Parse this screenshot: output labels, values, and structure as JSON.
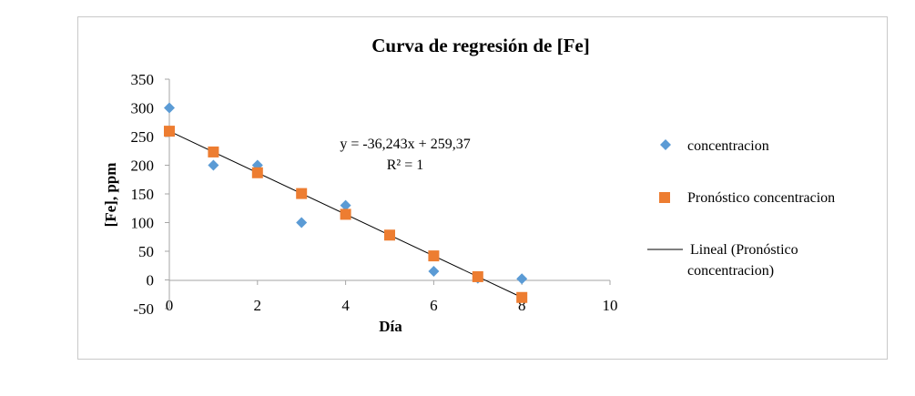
{
  "chart_data": {
    "type": "scatter",
    "title": "Curva de regresión de [Fe]",
    "xlabel": "Día",
    "ylabel": "[Fe], ppm",
    "xlim": [
      0,
      10
    ],
    "ylim": [
      -50,
      350
    ],
    "x_ticks": [
      "0",
      "2",
      "4",
      "6",
      "8",
      "10"
    ],
    "y_ticks": [
      "-50",
      "0",
      "50",
      "100",
      "150",
      "200",
      "250",
      "300",
      "350"
    ],
    "grid": false,
    "legend_position": "right",
    "series": [
      {
        "name": "concentracion",
        "marker": "diamond",
        "color": "#5B9BD5",
        "x": [
          0,
          1,
          2,
          3,
          4,
          6,
          7,
          8
        ],
        "y": [
          300,
          200,
          200,
          100,
          130,
          15,
          3,
          2
        ]
      },
      {
        "name": "Pronóstico concentracion",
        "marker": "square",
        "color": "#ED7D31",
        "x": [
          0,
          1,
          2,
          3,
          4,
          5,
          6,
          7,
          8
        ],
        "y": [
          259.37,
          223.13,
          186.88,
          150.64,
          114.4,
          78.16,
          41.91,
          5.67,
          -30.57
        ]
      }
    ],
    "trendline": {
      "name": "Lineal (Pronóstico concentracion)",
      "name_line1": "Lineal (Pronóstico",
      "name_line2": "concentracion)",
      "color": "#000000",
      "slope": -36.243,
      "intercept": 259.37,
      "x_range": [
        0,
        8
      ],
      "equation": "y = -36,243x + 259,37",
      "r_squared": "R² = 1"
    }
  }
}
